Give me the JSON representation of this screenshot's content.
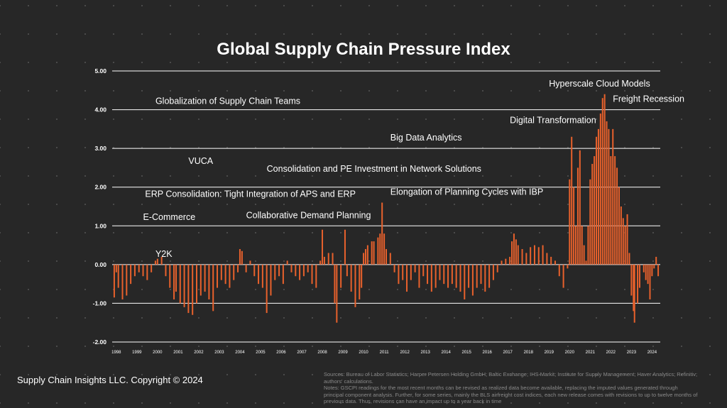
{
  "chart_data": {
    "type": "bar",
    "title": "Global Supply Chain Pressure Index",
    "xlabel": "",
    "ylabel": "",
    "ylim": [
      -2,
      5
    ],
    "y_ticks": [
      "5.00",
      "4.00",
      "3.00",
      "2.00",
      "1.00",
      "0.00",
      "-1.00",
      "-2.00"
    ],
    "x_ticks": [
      "1998",
      "1999",
      "2000",
      "2001",
      "2002",
      "2003",
      "2004",
      "2005",
      "2006",
      "2007",
      "2008",
      "2009",
      "2010",
      "2011",
      "2012",
      "2013",
      "2014",
      "2015",
      "2016",
      "2017",
      "2018",
      "2019",
      "2020",
      "2021",
      "2022",
      "2023",
      "2024"
    ],
    "x_range": [
      1997.8,
      2024.4
    ],
    "grid": "horizontal",
    "bar_color": "#e8612c",
    "series": [
      {
        "points": [
          [
            1997.9,
            -0.85
          ],
          [
            1998.0,
            -0.2
          ],
          [
            1998.1,
            -0.6
          ],
          [
            1998.3,
            -0.9
          ],
          [
            1998.5,
            -0.8
          ],
          [
            1998.7,
            -0.5
          ],
          [
            1998.9,
            -0.3
          ],
          [
            1999.1,
            -0.2
          ],
          [
            1999.3,
            -0.3
          ],
          [
            1999.5,
            -0.4
          ],
          [
            1999.7,
            -0.2
          ],
          [
            1999.9,
            0.1
          ],
          [
            2000.0,
            0.15
          ],
          [
            2000.2,
            0.2
          ],
          [
            2000.4,
            -0.3
          ],
          [
            2000.6,
            -0.6
          ],
          [
            2000.8,
            -0.9
          ],
          [
            2000.9,
            -0.7
          ],
          [
            2001.1,
            -1.0
          ],
          [
            2001.3,
            -1.1
          ],
          [
            2001.5,
            -1.25
          ],
          [
            2001.7,
            -1.3
          ],
          [
            2001.9,
            -1.0
          ],
          [
            2002.1,
            -0.8
          ],
          [
            2002.3,
            -0.7
          ],
          [
            2002.5,
            -0.9
          ],
          [
            2002.7,
            -1.2
          ],
          [
            2002.9,
            -0.6
          ],
          [
            2003.1,
            -0.4
          ],
          [
            2003.3,
            -0.5
          ],
          [
            2003.5,
            -0.6
          ],
          [
            2003.7,
            -0.4
          ],
          [
            2003.9,
            -0.2
          ],
          [
            2004.0,
            0.4
          ],
          [
            2004.1,
            0.35
          ],
          [
            2004.3,
            -0.2
          ],
          [
            2004.5,
            0.1
          ],
          [
            2004.7,
            -0.3
          ],
          [
            2004.9,
            -0.5
          ],
          [
            2005.1,
            -0.6
          ],
          [
            2005.3,
            -1.25
          ],
          [
            2005.5,
            -0.8
          ],
          [
            2005.7,
            -0.4
          ],
          [
            2005.9,
            -0.3
          ],
          [
            2006.1,
            -0.5
          ],
          [
            2006.3,
            0.1
          ],
          [
            2006.5,
            -0.2
          ],
          [
            2006.7,
            -0.3
          ],
          [
            2006.9,
            -0.4
          ],
          [
            2007.1,
            -0.3
          ],
          [
            2007.3,
            -0.2
          ],
          [
            2007.5,
            -0.5
          ],
          [
            2007.7,
            -0.6
          ],
          [
            2007.9,
            0.1
          ],
          [
            2008.0,
            0.9
          ],
          [
            2008.1,
            0.2
          ],
          [
            2008.3,
            0.3
          ],
          [
            2008.5,
            0.3
          ],
          [
            2008.6,
            -1.0
          ],
          [
            2008.7,
            -1.5
          ],
          [
            2008.9,
            -0.6
          ],
          [
            2009.1,
            0.9
          ],
          [
            2009.2,
            -0.3
          ],
          [
            2009.4,
            -0.7
          ],
          [
            2009.6,
            -1.1
          ],
          [
            2009.8,
            -0.9
          ],
          [
            2009.9,
            -0.6
          ],
          [
            2010.0,
            0.3
          ],
          [
            2010.1,
            0.4
          ],
          [
            2010.2,
            0.5
          ],
          [
            2010.4,
            0.6
          ],
          [
            2010.5,
            0.6
          ],
          [
            2010.7,
            0.7
          ],
          [
            2010.8,
            0.8
          ],
          [
            2010.9,
            1.6
          ],
          [
            2011.0,
            0.8
          ],
          [
            2011.1,
            0.4
          ],
          [
            2011.3,
            0.3
          ],
          [
            2011.5,
            -0.2
          ],
          [
            2011.7,
            -0.5
          ],
          [
            2011.9,
            -0.4
          ],
          [
            2012.1,
            -0.7
          ],
          [
            2012.3,
            -0.4
          ],
          [
            2012.5,
            -0.2
          ],
          [
            2012.7,
            -0.6
          ],
          [
            2012.9,
            -0.3
          ],
          [
            2013.1,
            -0.5
          ],
          [
            2013.3,
            -0.7
          ],
          [
            2013.5,
            -0.6
          ],
          [
            2013.7,
            -0.4
          ],
          [
            2013.9,
            -0.5
          ],
          [
            2014.1,
            -0.6
          ],
          [
            2014.3,
            -0.5
          ],
          [
            2014.5,
            -0.6
          ],
          [
            2014.7,
            -0.7
          ],
          [
            2014.9,
            -0.9
          ],
          [
            2015.1,
            -0.6
          ],
          [
            2015.3,
            -0.8
          ],
          [
            2015.5,
            -0.6
          ],
          [
            2015.7,
            -0.5
          ],
          [
            2015.9,
            -0.7
          ],
          [
            2016.1,
            -0.6
          ],
          [
            2016.3,
            -0.4
          ],
          [
            2016.5,
            -0.2
          ],
          [
            2016.7,
            0.1
          ],
          [
            2016.9,
            0.15
          ],
          [
            2017.1,
            0.2
          ],
          [
            2017.2,
            0.6
          ],
          [
            2017.3,
            0.8
          ],
          [
            2017.4,
            0.65
          ],
          [
            2017.5,
            0.5
          ],
          [
            2017.7,
            0.4
          ],
          [
            2017.9,
            0.3
          ],
          [
            2018.1,
            0.45
          ],
          [
            2018.3,
            0.5
          ],
          [
            2018.5,
            0.45
          ],
          [
            2018.7,
            0.5
          ],
          [
            2018.9,
            0.3
          ],
          [
            2019.1,
            0.2
          ],
          [
            2019.3,
            0.1
          ],
          [
            2019.5,
            -0.3
          ],
          [
            2019.7,
            -0.6
          ],
          [
            2019.9,
            -0.1
          ],
          [
            2020.0,
            2.2
          ],
          [
            2020.1,
            3.3
          ],
          [
            2020.2,
            2.0
          ],
          [
            2020.3,
            1.0
          ],
          [
            2020.4,
            2.5
          ],
          [
            2020.5,
            2.95
          ],
          [
            2020.6,
            1.0
          ],
          [
            2020.7,
            0.5
          ],
          [
            2020.8,
            0.1
          ],
          [
            2020.9,
            1.0
          ],
          [
            2021.0,
            2.2
          ],
          [
            2021.1,
            2.6
          ],
          [
            2021.2,
            2.8
          ],
          [
            2021.3,
            3.3
          ],
          [
            2021.4,
            3.5
          ],
          [
            2021.5,
            3.9
          ],
          [
            2021.6,
            4.3
          ],
          [
            2021.7,
            4.4
          ],
          [
            2021.8,
            3.7
          ],
          [
            2021.9,
            3.5
          ],
          [
            2022.0,
            2.8
          ],
          [
            2022.1,
            3.5
          ],
          [
            2022.2,
            2.8
          ],
          [
            2022.3,
            2.5
          ],
          [
            2022.4,
            2.0
          ],
          [
            2022.5,
            1.5
          ],
          [
            2022.6,
            1.2
          ],
          [
            2022.7,
            1.0
          ],
          [
            2022.8,
            1.3
          ],
          [
            2022.9,
            0.3
          ],
          [
            2023.0,
            -0.8
          ],
          [
            2023.1,
            -1.2
          ],
          [
            2023.15,
            -1.5
          ],
          [
            2023.3,
            -1.0
          ],
          [
            2023.4,
            -0.6
          ],
          [
            2023.6,
            -0.2
          ],
          [
            2023.7,
            -0.4
          ],
          [
            2023.8,
            -0.5
          ],
          [
            2023.9,
            -0.9
          ],
          [
            2024.0,
            -0.3
          ],
          [
            2024.1,
            -0.1
          ],
          [
            2024.2,
            0.2
          ],
          [
            2024.3,
            -0.3
          ]
        ]
      }
    ],
    "annotations": [
      {
        "text": "Y2K",
        "x": 1999.9,
        "y": 0.2
      },
      {
        "text": "E-Commerce",
        "x": 1999.3,
        "y": 1.15
      },
      {
        "text": "ERP Consolidation: Tight Integration of APS and ERP",
        "x": 1999.4,
        "y": 1.75
      },
      {
        "text": "Collaborative Demand Planning",
        "x": 2004.3,
        "y": 1.2
      },
      {
        "text": "VUCA",
        "x": 2001.5,
        "y": 2.6
      },
      {
        "text": "Consolidation and PE Investment in Network Solutions",
        "x": 2005.3,
        "y": 2.4
      },
      {
        "text": "Globalization of Supply Chain Teams",
        "x": 1999.9,
        "y": 4.15
      },
      {
        "text": "Big Data Analytics",
        "x": 2011.3,
        "y": 3.2
      },
      {
        "text": "Elongation of Planning Cycles with IBP",
        "x": 2011.3,
        "y": 1.8
      },
      {
        "text": "Digital Transformation",
        "x": 2017.1,
        "y": 3.65
      },
      {
        "text": "Hyperscale Cloud Models",
        "x": 2019.0,
        "y": 4.6
      },
      {
        "text": "Freight Recession",
        "x": 2022.1,
        "y": 4.2
      }
    ]
  },
  "footer": {
    "copyright": "Supply Chain Insights LLC. Copyright © 2024",
    "sources": "Sources: Bureau of Labor Statistics; Harper Petersen Holding GmbH; Baltic Exchange; IHS Markit; Institute for Supply Management; Haver Analytics; Refinitiv; authors' calculations.",
    "notes": "Notes: GSCPI readings for the most recent months can be revised as realized data become available, replacing the imputed values generated through principal component analysis. Further, for some series, mainly the BLS airfreight cost indices, each new release comes with revisions to up to twelve months of previous data. Thus, revisions can have an impact up to a year back in time"
  }
}
